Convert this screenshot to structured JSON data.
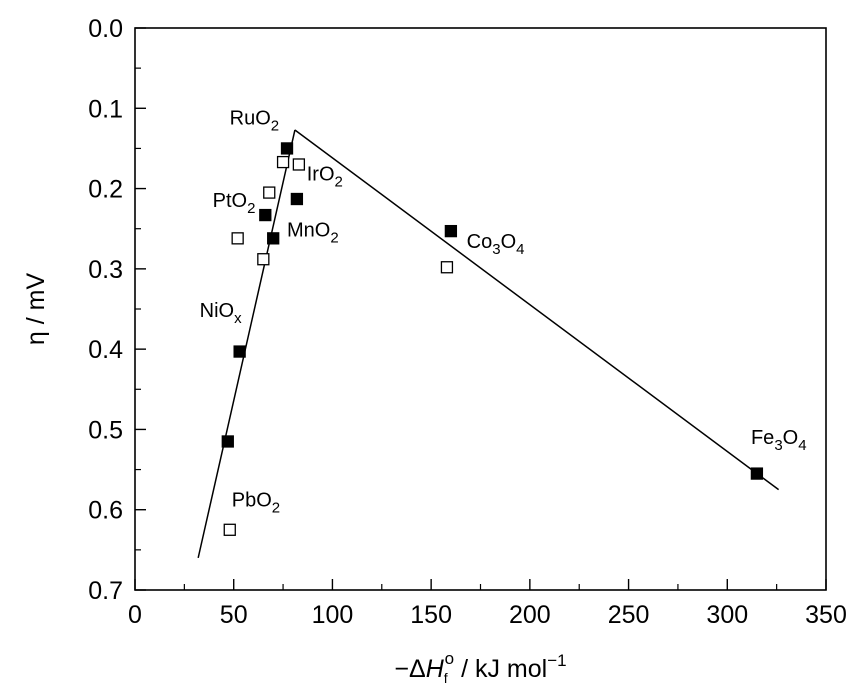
{
  "chart_data": {
    "type": "scatter",
    "ylabel": "η / mV",
    "xlabel_parts": {
      "prefix": "−Δ",
      "symbol": "H",
      "subscript": "f",
      "superscript": "o",
      "suffix": " / kJ mol",
      "unit_exponent": "−1"
    },
    "x_ticks": [
      "0",
      "50",
      "100",
      "150",
      "200",
      "250",
      "300",
      "350"
    ],
    "y_ticks": [
      "0.0",
      "0.1",
      "0.2",
      "0.3",
      "0.4",
      "0.5",
      "0.6",
      "0.7"
    ],
    "xlim": [
      0,
      350
    ],
    "ylim": [
      0.7,
      0.0
    ],
    "y_inverted": true,
    "grid": false,
    "legend": "none",
    "series": [
      {
        "marker": "filled-square",
        "points": [
          {
            "x": 77,
            "y": 0.15
          },
          {
            "x": 82,
            "y": 0.213
          },
          {
            "x": 66,
            "y": 0.233
          },
          {
            "x": 70,
            "y": 0.262
          },
          {
            "x": 160,
            "y": 0.253
          },
          {
            "x": 53,
            "y": 0.403
          },
          {
            "x": 47,
            "y": 0.515
          },
          {
            "x": 315,
            "y": 0.555
          }
        ]
      },
      {
        "marker": "open-square",
        "points": [
          {
            "x": 75,
            "y": 0.167
          },
          {
            "x": 83,
            "y": 0.17
          },
          {
            "x": 68,
            "y": 0.205
          },
          {
            "x": 52,
            "y": 0.262
          },
          {
            "x": 65,
            "y": 0.288
          },
          {
            "x": 158,
            "y": 0.298
          },
          {
            "x": 48,
            "y": 0.625
          }
        ]
      }
    ],
    "trend_lines": [
      {
        "points": [
          {
            "x": 32,
            "y": 0.66
          },
          {
            "x": 81,
            "y": 0.127
          }
        ]
      },
      {
        "points": [
          {
            "x": 81,
            "y": 0.127
          },
          {
            "x": 326,
            "y": 0.575
          }
        ]
      }
    ],
    "annotations": [
      {
        "base": "RuO",
        "sub": "2",
        "x": 73,
        "y": 0.12,
        "anchor": "end"
      },
      {
        "base": "IrO",
        "sub": "2",
        "x": 87,
        "y": 0.19,
        "anchor": "start"
      },
      {
        "base": "PtO",
        "sub": "2",
        "x": 61,
        "y": 0.223,
        "anchor": "end"
      },
      {
        "base": "MnO",
        "sub": "2",
        "x": 77,
        "y": 0.26,
        "anchor": "start"
      },
      {
        "base": "Co",
        "sub": "3",
        "base2": "O",
        "sub2": "4",
        "x": 168,
        "y": 0.274,
        "anchor": "start"
      },
      {
        "base": "NiO",
        "sub": "x",
        "x": 54,
        "y": 0.36,
        "anchor": "end"
      },
      {
        "base": "PbO",
        "sub": "2",
        "x": 49,
        "y": 0.596,
        "anchor": "start"
      },
      {
        "base": "Fe",
        "sub": "3",
        "base2": "O",
        "sub2": "4",
        "x": 312,
        "y": 0.518,
        "anchor": "start"
      }
    ]
  }
}
